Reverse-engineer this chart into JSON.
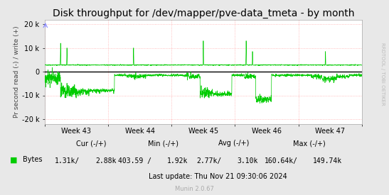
{
  "title": "Disk throughput for /dev/mapper/pve-data_tmeta - by month",
  "ylabel": "Pr second read (-) / write (+)",
  "background_color": "#e8e8e8",
  "plot_bg_color": "#ffffff",
  "grid_color": "#ffaaaa",
  "line_color": "#00cc00",
  "ylim": [
    -22000,
    22000
  ],
  "yticks": [
    -20000,
    -10000,
    0,
    10000,
    20000
  ],
  "ytick_labels": [
    "-20 k",
    "-10 k",
    "0",
    "10 k",
    "20 k"
  ],
  "week_labels": [
    "Week 43",
    "Week 44",
    "Week 45",
    "Week 46",
    "Week 47"
  ],
  "legend_label": "Bytes",
  "legend_color": "#00cc00",
  "footer_munin": "Munin 2.0.67",
  "footer_update": "Last update: Thu Nov 21 09:30:06 2024",
  "cur_label": "Cur (-/+)",
  "cur_val_neg": "1.31k/",
  "cur_val_pos": "2.88k",
  "min_label": "Min (-/+)",
  "min_val_neg": "403.59 /",
  "min_val_pos": "1.92k",
  "avg_label": "Avg (-/+)",
  "avg_val_neg": "2.77k/",
  "avg_val_pos": "3.10k",
  "max_label": "Max (-/+)",
  "max_val_neg": "160.64k/",
  "max_val_pos": "149.74k",
  "rrdtool_text": "RRDTOOL / TOBI OETIKER",
  "title_fontsize": 10,
  "tick_fontsize": 7,
  "small_fontsize": 6
}
